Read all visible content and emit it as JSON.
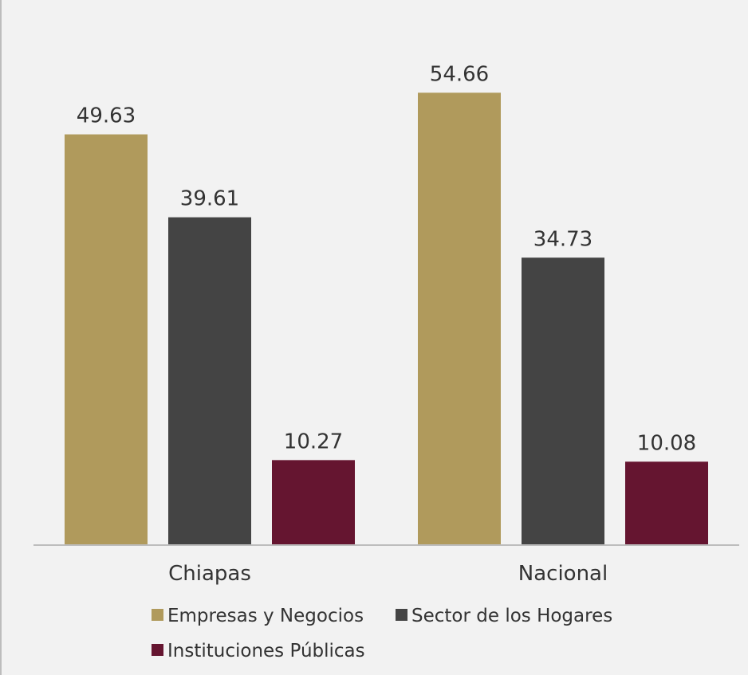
{
  "chart_data": {
    "type": "bar",
    "categories": [
      "Chiapas",
      "Nacional"
    ],
    "series": [
      {
        "name": "Empresas y Negocios",
        "values": [
          49.63,
          54.66
        ],
        "color": "#b09a5c"
      },
      {
        "name": "Sector de los Hogares",
        "values": [
          39.61,
          34.73
        ],
        "color": "#444444"
      },
      {
        "name": "Instituciones Públicas",
        "values": [
          10.27,
          10.08
        ],
        "color": "#651530"
      }
    ],
    "value_labels": {
      "Chiapas": [
        "49.63",
        "39.61",
        "10.27"
      ],
      "Nacional": [
        "54.66",
        "34.73",
        "10.08"
      ]
    },
    "title": "",
    "xlabel": "",
    "ylabel": "",
    "ylim": [
      0,
      60
    ],
    "grid": false,
    "legend_position": "bottom",
    "axis_color": "#bdbdbd",
    "text_color": "#333333",
    "background": "#f2f2f2"
  }
}
